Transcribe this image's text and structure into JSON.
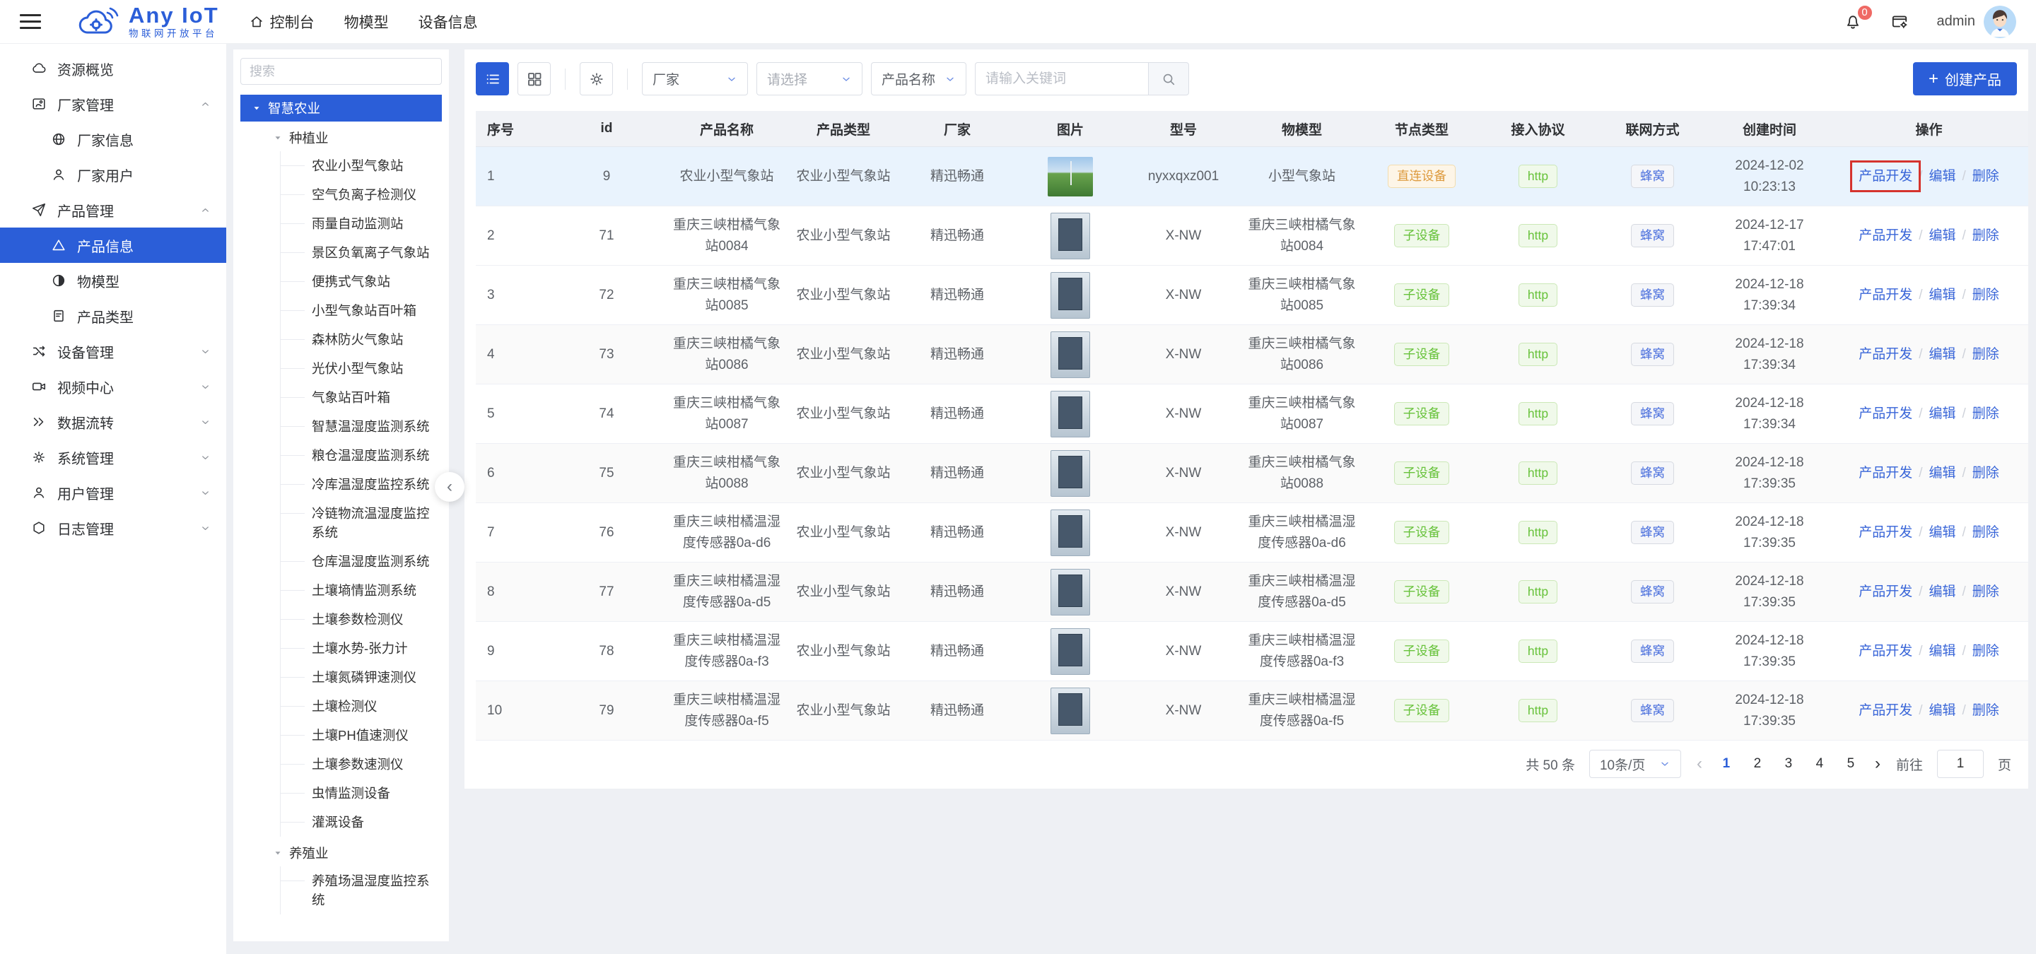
{
  "header": {
    "logo_title": "Any IoT",
    "logo_subtitle": "物联网开放平台",
    "nav": [
      {
        "label": "控制台",
        "icon": "home-icon"
      },
      {
        "label": "物模型",
        "icon": ""
      },
      {
        "label": "设备信息",
        "icon": ""
      }
    ],
    "notification_count": "0",
    "username": "admin"
  },
  "sidebar": {
    "items": [
      {
        "label": "资源概览",
        "icon": "cloud-icon",
        "level": "top",
        "chevron": ""
      },
      {
        "label": "厂家管理",
        "icon": "vendor-icon",
        "level": "top",
        "chevron": "up"
      },
      {
        "label": "厂家信息",
        "icon": "globe-icon",
        "level": "child",
        "chevron": ""
      },
      {
        "label": "厂家用户",
        "icon": "user-icon",
        "level": "child",
        "chevron": ""
      },
      {
        "label": "产品管理",
        "icon": "send-icon",
        "level": "top",
        "chevron": "up"
      },
      {
        "label": "产品信息",
        "icon": "triangle-icon",
        "level": "child",
        "chevron": "",
        "active": true
      },
      {
        "label": "物模型",
        "icon": "contrast-icon",
        "level": "child",
        "chevron": ""
      },
      {
        "label": "产品类型",
        "icon": "doc-icon",
        "level": "child",
        "chevron": ""
      },
      {
        "label": "设备管理",
        "icon": "hub-icon",
        "level": "top",
        "chevron": "down"
      },
      {
        "label": "视频中心",
        "icon": "video-icon",
        "level": "top",
        "chevron": "down"
      },
      {
        "label": "数据流转",
        "icon": "flow-icon",
        "level": "top",
        "chevron": "down"
      },
      {
        "label": "系统管理",
        "icon": "gear-icon",
        "level": "top",
        "chevron": "down"
      },
      {
        "label": "用户管理",
        "icon": "user-icon",
        "level": "top",
        "chevron": "down"
      },
      {
        "label": "日志管理",
        "icon": "hexagon-icon",
        "level": "top",
        "chevron": "down"
      }
    ]
  },
  "tree": {
    "search_placeholder": "搜索",
    "root_label": "智慧农业",
    "groups": [
      {
        "label": "种植业",
        "children": [
          "农业小型气象站",
          "空气负离子检测仪",
          "雨量自动监测站",
          "景区负氧离子气象站",
          "便携式气象站",
          "小型气象站百叶箱",
          "森林防火气象站",
          "光伏小型气象站",
          "气象站百叶箱",
          "智慧温湿度监测系统",
          "粮仓温湿度监测系统",
          "冷库温湿度监控系统",
          "冷链物流温湿度监控系统",
          "仓库温湿度监测系统",
          "土壤墒情监测系统",
          "土壤参数检测仪",
          "土壤水势-张力计",
          "土壤氮磷钾速测仪",
          "土壤检测仪",
          "土壤PH值速测仪",
          "土壤参数速测仪",
          "虫情监测设备",
          "灌溉设备"
        ]
      },
      {
        "label": "养殖业",
        "children": [
          "养殖场温湿度监控系统"
        ]
      }
    ]
  },
  "toolbar": {
    "filters": [
      {
        "value": "厂家",
        "placeholder": false
      },
      {
        "value": "请选择",
        "placeholder": true
      },
      {
        "value": "产品名称",
        "placeholder": false
      }
    ],
    "keyword_placeholder": "请输入关键词",
    "create_label": "创建产品"
  },
  "table": {
    "columns": [
      "序号",
      "id",
      "产品名称",
      "产品类型",
      "厂家",
      "图片",
      "型号",
      "物模型",
      "节点类型",
      "接入协议",
      "联网方式",
      "创建时间",
      "操作"
    ],
    "actions": [
      "产品开发",
      "编辑",
      "删除"
    ],
    "rows": [
      {
        "index": "1",
        "id": "9",
        "name": "农业小型气象站",
        "type": "农业小型气象站",
        "vendor": "精迅畅通",
        "image": "field",
        "model": "nyxxqxz001",
        "thing_model": "小型气象站",
        "node_type": "直连设备",
        "node_type_style": "orange",
        "protocol": "http",
        "network": "蜂窝",
        "created_date": "2024-12-02",
        "created_time": "10:23:13",
        "row_state": "hover",
        "highlight_action": true
      },
      {
        "index": "2",
        "id": "71",
        "name": "重庆三峡柑橘气象站0084",
        "type": "农业小型气象站",
        "vendor": "精迅畅通",
        "image": "device",
        "model": "X-NW",
        "thing_model": "重庆三峡柑橘气象站0084",
        "node_type": "子设备",
        "node_type_style": "green",
        "protocol": "http",
        "network": "蜂窝",
        "created_date": "2024-12-17",
        "created_time": "17:47:01"
      },
      {
        "index": "3",
        "id": "72",
        "name": "重庆三峡柑橘气象站0085",
        "type": "农业小型气象站",
        "vendor": "精迅畅通",
        "image": "device",
        "model": "X-NW",
        "thing_model": "重庆三峡柑橘气象站0085",
        "node_type": "子设备",
        "node_type_style": "green",
        "protocol": "http",
        "network": "蜂窝",
        "created_date": "2024-12-18",
        "created_time": "17:39:34"
      },
      {
        "index": "4",
        "id": "73",
        "name": "重庆三峡柑橘气象站0086",
        "type": "农业小型气象站",
        "vendor": "精迅畅通",
        "image": "device",
        "model": "X-NW",
        "thing_model": "重庆三峡柑橘气象站0086",
        "node_type": "子设备",
        "node_type_style": "green",
        "protocol": "http",
        "network": "蜂窝",
        "created_date": "2024-12-18",
        "created_time": "17:39:34"
      },
      {
        "index": "5",
        "id": "74",
        "name": "重庆三峡柑橘气象站0087",
        "type": "农业小型气象站",
        "vendor": "精迅畅通",
        "image": "device",
        "model": "X-NW",
        "thing_model": "重庆三峡柑橘气象站0087",
        "node_type": "子设备",
        "node_type_style": "green",
        "protocol": "http",
        "network": "蜂窝",
        "created_date": "2024-12-18",
        "created_time": "17:39:34"
      },
      {
        "index": "6",
        "id": "75",
        "name": "重庆三峡柑橘气象站0088",
        "type": "农业小型气象站",
        "vendor": "精迅畅通",
        "image": "device",
        "model": "X-NW",
        "thing_model": "重庆三峡柑橘气象站0088",
        "node_type": "子设备",
        "node_type_style": "green",
        "protocol": "http",
        "network": "蜂窝",
        "created_date": "2024-12-18",
        "created_time": "17:39:35"
      },
      {
        "index": "7",
        "id": "76",
        "name": "重庆三峡柑橘温湿度传感器0a-d6",
        "type": "农业小型气象站",
        "vendor": "精迅畅通",
        "image": "device",
        "model": "X-NW",
        "thing_model": "重庆三峡柑橘温湿度传感器0a-d6",
        "node_type": "子设备",
        "node_type_style": "green",
        "protocol": "http",
        "network": "蜂窝",
        "created_date": "2024-12-18",
        "created_time": "17:39:35"
      },
      {
        "index": "8",
        "id": "77",
        "name": "重庆三峡柑橘温湿度传感器0a-d5",
        "type": "农业小型气象站",
        "vendor": "精迅畅通",
        "image": "device",
        "model": "X-NW",
        "thing_model": "重庆三峡柑橘温湿度传感器0a-d5",
        "node_type": "子设备",
        "node_type_style": "green",
        "protocol": "http",
        "network": "蜂窝",
        "created_date": "2024-12-18",
        "created_time": "17:39:35"
      },
      {
        "index": "9",
        "id": "78",
        "name": "重庆三峡柑橘温湿度传感器0a-f3",
        "type": "农业小型气象站",
        "vendor": "精迅畅通",
        "image": "device",
        "model": "X-NW",
        "thing_model": "重庆三峡柑橘温湿度传感器0a-f3",
        "node_type": "子设备",
        "node_type_style": "green",
        "protocol": "http",
        "network": "蜂窝",
        "created_date": "2024-12-18",
        "created_time": "17:39:35"
      },
      {
        "index": "10",
        "id": "79",
        "name": "重庆三峡柑橘温湿度传感器0a-f5",
        "type": "农业小型气象站",
        "vendor": "精迅畅通",
        "image": "device",
        "model": "X-NW",
        "thing_model": "重庆三峡柑橘温湿度传感器0a-f5",
        "node_type": "子设备",
        "node_type_style": "green",
        "protocol": "http",
        "network": "蜂窝",
        "created_date": "2024-12-18",
        "created_time": "17:39:35"
      }
    ]
  },
  "pagination": {
    "total_label": "共 50 条",
    "page_size": "10条/页",
    "pages": [
      "1",
      "2",
      "3",
      "4",
      "5"
    ],
    "current_page": "1",
    "prev_arrow": "‹",
    "next_arrow": "›",
    "goto_label": "前往",
    "goto_value": "1",
    "page_unit": "页"
  },
  "colors": {
    "accent_blue": "#2b5ed8",
    "annotation_red": "#d5332d",
    "tag_green": "#67c23a",
    "tag_orange": "#dd9a3e",
    "tag_info_blue": "#4a6fdd",
    "hover_row": "#e9f3fd"
  }
}
